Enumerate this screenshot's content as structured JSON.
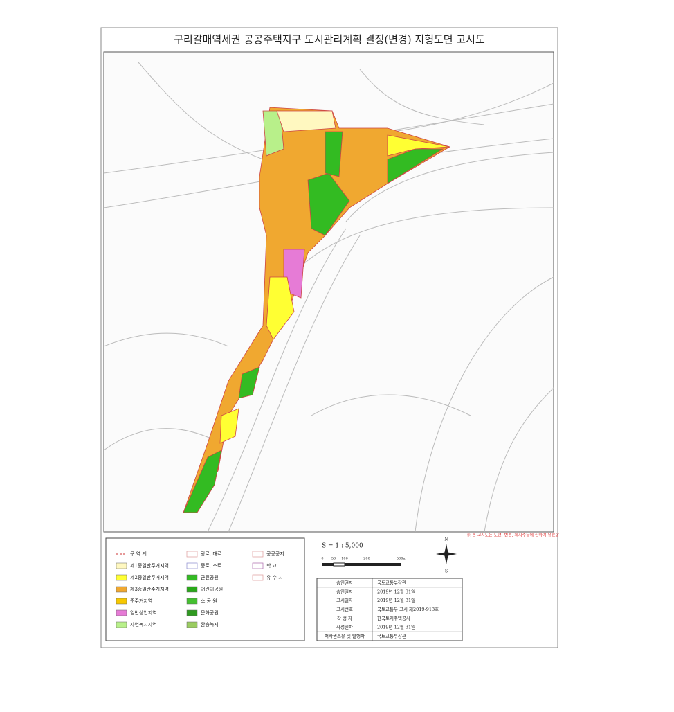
{
  "title": "구리갈매역세권 공공주택지구 도시관리계획 결정(변경) 지형도면 고시도",
  "note": "※ 본 고시도는 도면, 변경, 제지주등에 한하여 유효함",
  "scale": {
    "label": "S = 1 : 5,000",
    "ticks": [
      "0",
      "50",
      "100",
      "200",
      "500m"
    ]
  },
  "compass": {
    "north": "N",
    "south": "S"
  },
  "legend": {
    "items": [
      "구 역 계",
      "제1종일반주거지역",
      "제2종일반주거지역",
      "제3종일반주거지역",
      "준주거지역",
      "일반상업지역",
      "자연녹지지역",
      "광로, 대로",
      "중로, 소로",
      "근린공원",
      "어린이공원",
      "소 공 원",
      "문화공원",
      "완충녹지",
      "공공공지",
      "학 교",
      "유 수 지"
    ]
  },
  "table": {
    "rows": [
      [
        "승인권자",
        "국토교통부장관"
      ],
      [
        "승인일자",
        "2019년 12월 31일"
      ],
      [
        "고시일자",
        "2019년 12월 31일"
      ],
      [
        "고시번호",
        "국토교통부 고시 제2019-913호"
      ],
      [
        "작 성 자",
        "한국토지주택공사"
      ],
      [
        "작성일자",
        "2019년 12월 31일"
      ],
      [
        "저작권소유 및 발행자",
        "국토교통부장관"
      ]
    ]
  }
}
